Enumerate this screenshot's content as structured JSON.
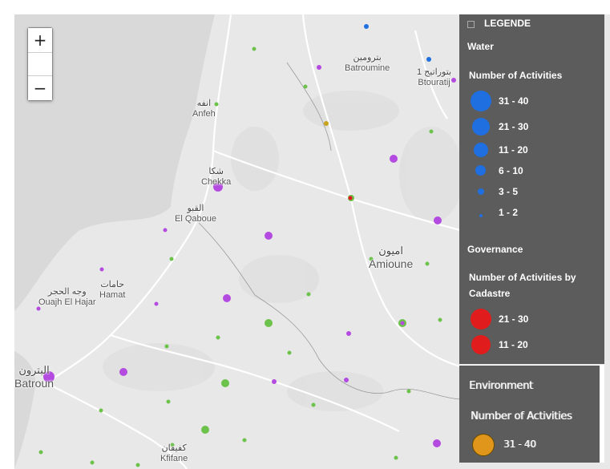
{
  "map": {
    "zoom_in_label": "+",
    "zoom_out_label": "−",
    "places": [
      {
        "id": "batroumine",
        "ar": "بترومين",
        "en": "Batroumine"
      },
      {
        "id": "btouratij",
        "ar": "بتوراتيج 1",
        "en": "Btouratij"
      },
      {
        "id": "anfeh",
        "ar": "انفه",
        "en": "Anfeh"
      },
      {
        "id": "chekka",
        "ar": "شكا",
        "en": "Chekka"
      },
      {
        "id": "el-qaboue",
        "ar": "القبو",
        "en": "El Qaboue"
      },
      {
        "id": "amioune",
        "ar": "اميون",
        "en": "Amioune"
      },
      {
        "id": "hamat",
        "ar": "حامات",
        "en": "Hamat"
      },
      {
        "id": "ouajh-el-hajar",
        "ar": "وجه الحجر",
        "en": "Ouajh El Hajar"
      },
      {
        "id": "batroun",
        "ar": "البترون",
        "en": "Batroun"
      },
      {
        "id": "kfifane",
        "ar": "كفيفان",
        "en": "Kfifane"
      }
    ]
  },
  "legend": {
    "header": "LEGENDE",
    "sections": [
      {
        "title": "Water",
        "subtitle": "Number of Activities",
        "color": "#1f6fe0",
        "items": [
          "31 - 40",
          "21 - 30",
          "11 - 20",
          "6 - 10",
          "3 - 5",
          "1 - 2"
        ]
      },
      {
        "title": "Governance",
        "subtitle": "Number of Activities by Cadastre",
        "color": "#e01c1c",
        "items": [
          "21 - 30",
          "11 - 20"
        ]
      },
      {
        "title": "Environment",
        "subtitle": "Number of Activities",
        "color": "#e0961a",
        "items": [
          "31 - 40"
        ]
      }
    ]
  }
}
